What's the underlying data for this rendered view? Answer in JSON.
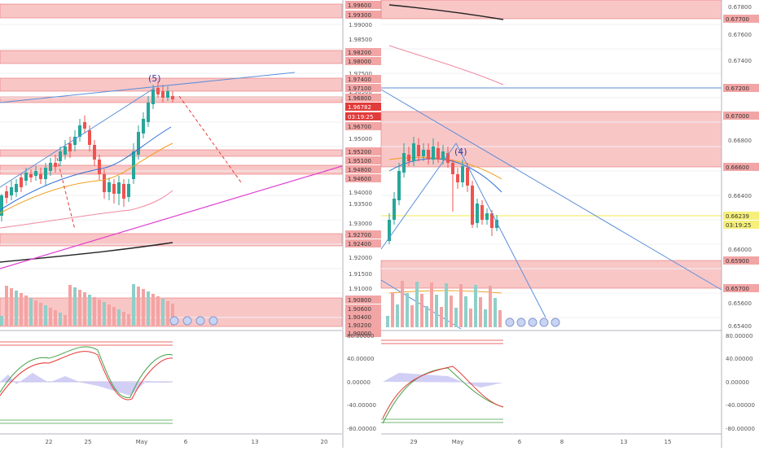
{
  "app": {
    "title": ""
  },
  "left_chart": {
    "type": "candlestick",
    "price_ticks": [
      "1.99000",
      "1.98500",
      "1.97500",
      "1.96500",
      "1.95000",
      "1.94000",
      "1.93500",
      "1.93000",
      "1.92000",
      "1.91500",
      "1.91000",
      "1.90000"
    ],
    "price_labels": [
      {
        "text": "1.99600",
        "color": "#f2a5a5",
        "dark": true
      },
      {
        "text": "1.99300",
        "color": "#f2a5a5",
        "dark": true
      },
      {
        "text": "1.98200",
        "color": "#f2a5a5",
        "dark": true
      },
      {
        "text": "1.98000",
        "color": "#f2a5a5",
        "dark": true
      },
      {
        "text": "1.97400",
        "color": "#f2a5a5",
        "dark": true
      },
      {
        "text": "1.97100",
        "color": "#f2a5a5",
        "dark": true
      },
      {
        "text": "1.96800",
        "color": "#f2a5a5",
        "dark": true
      },
      {
        "text": "1.96782",
        "color": "#e23b3b",
        "dark": false
      },
      {
        "text": "03:19:25",
        "color": "#e23b3b",
        "dark": false
      },
      {
        "text": "1.96700",
        "color": "#f2a5a5",
        "dark": true
      },
      {
        "text": "1.95200",
        "color": "#f2a5a5",
        "dark": true
      },
      {
        "text": "1.95100",
        "color": "#f2a5a5",
        "dark": true
      },
      {
        "text": "1.94800",
        "color": "#f2a5a5",
        "dark": true
      },
      {
        "text": "1.94600",
        "color": "#f2a5a5",
        "dark": true
      },
      {
        "text": "1.92700",
        "color": "#f2a5a5",
        "dark": true
      },
      {
        "text": "1.92400",
        "color": "#f2a5a5",
        "dark": true
      },
      {
        "text": "1.90800",
        "color": "#f2a5a5",
        "dark": true
      },
      {
        "text": "1.90600",
        "color": "#f2a5a5",
        "dark": true
      },
      {
        "text": "1.90400",
        "color": "#f2a5a5",
        "dark": true
      },
      {
        "text": "1.90200",
        "color": "#f2a5a5",
        "dark": true
      },
      {
        "text": "1.90000",
        "color": "#f2a5a5",
        "dark": true
      }
    ],
    "wave_label": "(5)",
    "osc_ticks": [
      "80.00000",
      "40.00000",
      "0.00000",
      "-40.00000",
      "-80.00000"
    ],
    "date_ticks": [
      "22",
      "25",
      "May",
      "6",
      "13",
      "20"
    ]
  },
  "right_chart": {
    "type": "candlestick",
    "price_ticks": [
      "0.67800",
      "0.67600",
      "0.67400",
      "0.67200",
      "0.66800",
      "0.66400",
      "0.66000",
      "0.65600",
      "0.65400"
    ],
    "price_labels": [
      {
        "text": "0.67700",
        "color": "#f2a5a5",
        "dark": true
      },
      {
        "text": "0.67200",
        "color": "#f2a5a5",
        "dark": true
      },
      {
        "text": "0.67000",
        "color": "#f2a5a5",
        "dark": true
      },
      {
        "text": "0.66600",
        "color": "#f2a5a5",
        "dark": true
      },
      {
        "text": "0.66239",
        "color": "#f6f07a",
        "dark": true
      },
      {
        "text": "03:19:25",
        "color": "#f6f07a",
        "dark": true
      },
      {
        "text": "0.65900",
        "color": "#f2a5a5",
        "dark": true
      },
      {
        "text": "0.65700",
        "color": "#f2a5a5",
        "dark": true
      }
    ],
    "wave_label": "(4)",
    "osc_ticks": [
      "80.00000",
      "40.00000",
      "0.00000",
      "-40.00000",
      "-80.00000"
    ],
    "date_ticks": [
      "29",
      "May",
      "6",
      "8",
      "13",
      "15"
    ]
  },
  "colors": {
    "bull": "#26a69a",
    "bear": "#ef5350",
    "zone": "#f9c6c6",
    "zone_line": "#e57373"
  }
}
